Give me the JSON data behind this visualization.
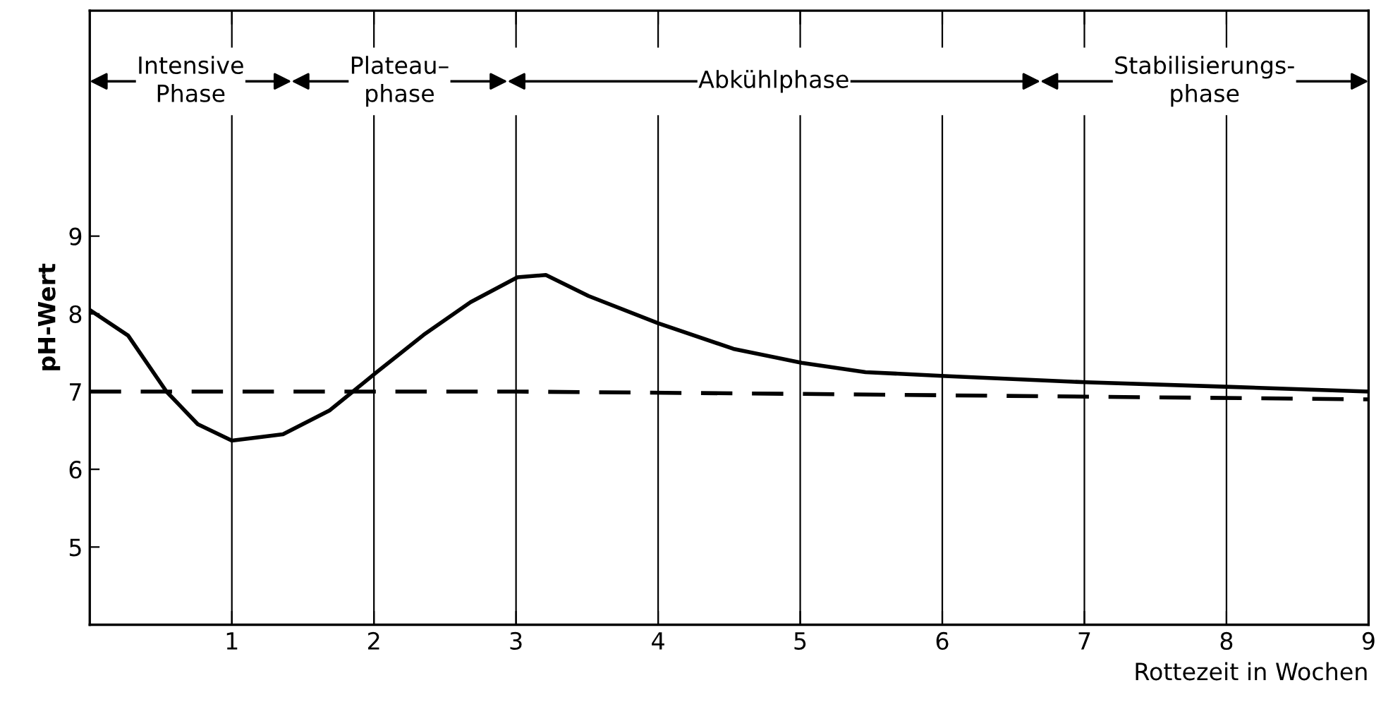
{
  "chart_data": {
    "type": "line",
    "xlabel": "Rottezeit in Wochen",
    "ylabel": "pH-Wert",
    "xlim": [
      0,
      9
    ],
    "ylim": [
      4,
      11.9
    ],
    "xticks": [
      1,
      2,
      3,
      4,
      5,
      6,
      7,
      8,
      9
    ],
    "yticks": [
      5,
      6,
      7,
      8,
      9
    ],
    "grid": "x",
    "series": [
      {
        "color": "#000000",
        "line_style": "solid",
        "x": [
          0,
          0.27,
          0.54,
          0.76,
          1.0,
          1.36,
          1.69,
          2.02,
          2.35,
          2.68,
          3.01,
          3.21,
          3.51,
          4.0,
          4.53,
          5.01,
          5.46,
          6.02,
          7.01,
          8.03,
          9.0
        ],
        "values": [
          8.05,
          7.72,
          7.0,
          6.58,
          6.37,
          6.45,
          6.76,
          7.25,
          7.73,
          8.15,
          8.47,
          8.5,
          8.23,
          7.88,
          7.55,
          7.37,
          7.25,
          7.2,
          7.12,
          7.06,
          7.0
        ]
      },
      {
        "color": "#000000",
        "line_style": "dashed",
        "x": [
          0,
          3,
          5,
          9
        ],
        "values": [
          7.0,
          7.0,
          6.97,
          6.9
        ]
      }
    ],
    "bands": [
      {
        "axis": "x",
        "from": 0,
        "to": 1.42,
        "label": "Intensive\nPhase",
        "color": "#ffffff"
      },
      {
        "axis": "x",
        "from": 1.42,
        "to": 2.94,
        "label": "Plateau–\nphase",
        "color": "#ffffff"
      },
      {
        "axis": "x",
        "from": 2.94,
        "to": 6.69,
        "label": "Abkühlphase",
        "color": "#ffffff"
      },
      {
        "axis": "x",
        "from": 6.69,
        "to": 9,
        "label": "Stabilisierungs-\nphase",
        "color": "#ffffff"
      }
    ]
  }
}
